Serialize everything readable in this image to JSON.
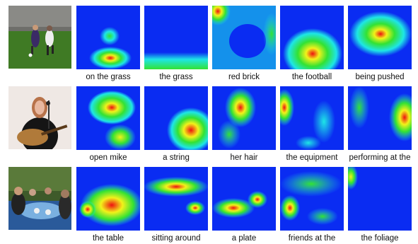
{
  "figure": {
    "rows": [
      {
        "photo_icon": "soccer-players-photo",
        "captions": [
          "on the grass",
          "the grass",
          "red brick",
          "the football",
          "being pushed"
        ]
      },
      {
        "photo_icon": "woman-singing-guitar-photo",
        "captions": [
          "open mike",
          "a string",
          "her hair",
          "the equipment",
          "performing at the"
        ]
      },
      {
        "photo_icon": "friends-dining-table-photo",
        "captions": [
          "the table",
          "sitting around",
          "a plate",
          "friends at the",
          "the foliage"
        ]
      }
    ],
    "colors": {
      "heat_low": "#0a2cf2",
      "heat_mid": "#1ee6e6",
      "heat_green": "#33e233",
      "heat_yellow": "#f2f21a",
      "heat_high": "#ee1111"
    }
  }
}
